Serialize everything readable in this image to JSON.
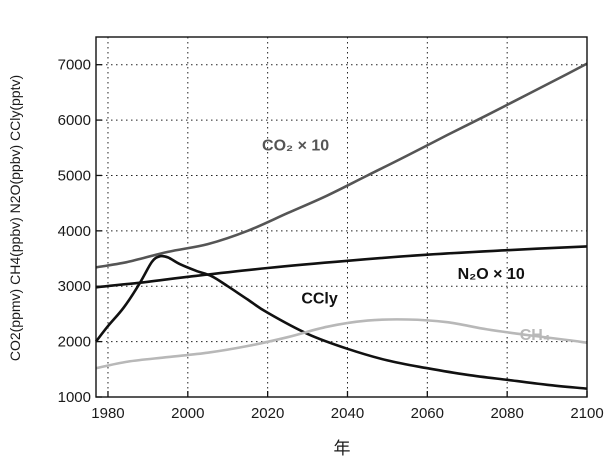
{
  "chart_data": {
    "type": "line",
    "xlabel": "年",
    "ylabel": "CO2(ppmv)  CH4(ppbv)  N2O(ppbv)  CCly(pptv)",
    "xlim": [
      1977,
      2100
    ],
    "ylim": [
      1000,
      7500
    ],
    "xticks": [
      1980,
      2000,
      2020,
      2040,
      2060,
      2080,
      2100
    ],
    "yticks": [
      1000,
      2000,
      3000,
      4000,
      5000,
      6000,
      7000
    ],
    "grid": true,
    "series": [
      {
        "name": "CO₂ × 10",
        "color": "#555555",
        "x": [
          1977,
          1985,
          1995,
          2005,
          2015,
          2025,
          2035,
          2045,
          2055,
          2065,
          2075,
          2085,
          2095,
          2100
        ],
        "y": [
          3340,
          3440,
          3620,
          3760,
          4000,
          4320,
          4640,
          5000,
          5360,
          5730,
          6090,
          6460,
          6830,
          7020
        ]
      },
      {
        "name": "N₂O × 10",
        "color": "#111111",
        "x": [
          1977,
          1990,
          2000,
          2020,
          2040,
          2060,
          2080,
          2100
        ],
        "y": [
          2980,
          3080,
          3170,
          3330,
          3460,
          3570,
          3650,
          3720
        ]
      },
      {
        "name": "CCly",
        "color": "#111111",
        "x": [
          1977,
          1980,
          1984,
          1988,
          1991,
          1993,
          1995,
          1998,
          2002,
          2006,
          2010,
          2015,
          2020,
          2030,
          2040,
          2050,
          2060,
          2070,
          2080,
          2090,
          2100
        ],
        "y": [
          2000,
          2280,
          2620,
          3060,
          3440,
          3540,
          3520,
          3400,
          3280,
          3180,
          3000,
          2760,
          2520,
          2140,
          1870,
          1660,
          1520,
          1400,
          1310,
          1220,
          1150
        ]
      },
      {
        "name": "CH₄",
        "color": "#b8b8b8",
        "x": [
          1977,
          1985,
          1995,
          2005,
          2015,
          2025,
          2035,
          2045,
          2055,
          2065,
          2075,
          2085,
          2095,
          2100
        ],
        "y": [
          1520,
          1640,
          1720,
          1800,
          1920,
          2080,
          2270,
          2380,
          2400,
          2350,
          2220,
          2120,
          2030,
          1980
        ]
      }
    ],
    "labels": [
      {
        "text": "CO₂ × 10",
        "x": 2027,
        "y": 5450
      },
      {
        "text": "N₂O × 10",
        "x": 2076,
        "y": 3130
      },
      {
        "text": "CCly",
        "x": 2033,
        "y": 2690
      },
      {
        "text": "CH₄",
        "x": 2087,
        "y": 2030
      }
    ]
  }
}
